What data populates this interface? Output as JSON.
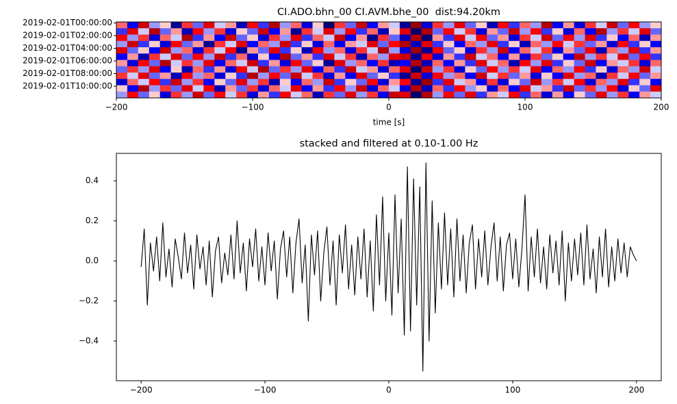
{
  "chart_data": [
    {
      "type": "heatmap",
      "title": "CI.ADO.bhn_00 CI.AVM.bhe_00  dist:94.20km",
      "xlabel": "time [s]",
      "xlim": [
        -200,
        200
      ],
      "xticks": [
        {
          "value": -200,
          "label": "−200"
        },
        {
          "value": -100,
          "label": "−100"
        },
        0,
        100,
        200
      ],
      "rows": [
        "2019-02-01T00:00:00",
        null,
        "2019-02-01T02:00:00",
        null,
        "2019-02-01T04:00:00",
        null,
        "2019-02-01T06:00:00",
        null,
        "2019-02-01T08:00:00",
        null,
        "2019-02-01T10:00:00",
        null
      ],
      "cmap": "seismic",
      "clim": [
        -10,
        10
      ],
      "z": [
        [
          3,
          -5,
          7,
          -2,
          1,
          -8,
          4,
          -3,
          6,
          -1,
          2,
          -7,
          5,
          -4,
          8,
          -2,
          3,
          -6,
          1,
          -9,
          4,
          -3,
          7,
          -5,
          2,
          -1,
          -8,
          9,
          -6,
          4,
          -2,
          6,
          -3,
          1,
          -7,
          5,
          -4,
          3,
          -2,
          8,
          -5,
          2,
          -6,
          4,
          -1,
          7,
          -3,
          5,
          -2,
          1
        ],
        [
          -4,
          6,
          -1,
          8,
          -3,
          2,
          -7,
          5,
          -2,
          4,
          -6,
          1,
          -3,
          7,
          -5,
          2,
          -8,
          4,
          -1,
          6,
          -2,
          5,
          -4,
          3,
          -7,
          1,
          6,
          -9,
          8,
          -3,
          5,
          -1,
          4,
          -6,
          2,
          -3,
          7,
          -2,
          5,
          -4,
          1,
          -6,
          3,
          -5,
          8,
          -2,
          4,
          -1,
          6,
          -3
        ],
        [
          5,
          -2,
          4,
          -6,
          3,
          -1,
          8,
          -4,
          2,
          -5,
          7,
          -3,
          1,
          -6,
          4,
          -2,
          6,
          -4,
          3,
          -1,
          7,
          -5,
          2,
          -8,
          4,
          -3,
          -7,
          8,
          -9,
          2,
          -4,
          6,
          -1,
          5,
          -3,
          2,
          -6,
          4,
          -1,
          7,
          -3,
          5,
          -2,
          6,
          -4,
          1,
          -5,
          3,
          -7,
          2
        ],
        [
          -2,
          7,
          -4,
          1,
          -6,
          5,
          -3,
          2,
          -8,
          4,
          -1,
          6,
          -5,
          3,
          -2,
          7,
          -4,
          1,
          -6,
          3,
          -5,
          2,
          -1,
          6,
          -3,
          5,
          8,
          -7,
          6,
          -4,
          1,
          -5,
          3,
          -2,
          6,
          -4,
          1,
          -7,
          3,
          -2,
          5,
          -1,
          4,
          -3,
          2,
          -6,
          5,
          -4,
          1,
          -5
        ],
        [
          6,
          -3,
          1,
          -5,
          7,
          -2,
          3,
          -6,
          4,
          -1,
          5,
          -8,
          2,
          -3,
          6,
          -4,
          1,
          -7,
          5,
          -2,
          3,
          -6,
          4,
          -1,
          8,
          -2,
          -6,
          9,
          -8,
          5,
          -3,
          1,
          -6,
          4,
          -2,
          7,
          -5,
          3,
          -1,
          4,
          -6,
          2,
          -3,
          5,
          -7,
          3,
          -2,
          6,
          -4,
          2
        ],
        [
          -5,
          2,
          -7,
          4,
          -1,
          6,
          -3,
          5,
          -2,
          7,
          -4,
          3,
          -6,
          1,
          -5,
          8,
          -3,
          2,
          -4,
          6,
          -1,
          4,
          -7,
          3,
          -2,
          6,
          7,
          -8,
          5,
          -6,
          2,
          -4,
          7,
          -1,
          3,
          -5,
          2,
          -6,
          4,
          -3,
          1,
          -5,
          7,
          -2,
          4,
          -1,
          6,
          -3,
          5,
          -4
        ],
        [
          2,
          -6,
          5,
          -3,
          8,
          -1,
          4,
          -2,
          6,
          -5,
          3,
          -1,
          7,
          -4,
          2,
          -6,
          5,
          -3,
          1,
          -8,
          6,
          -2,
          3,
          -5,
          4,
          -7,
          -5,
          8,
          -7,
          3,
          -5,
          2,
          -4,
          6,
          -1,
          3,
          -7,
          5,
          -2,
          6,
          -4,
          1,
          -3,
          7,
          -5,
          2,
          -1,
          4,
          -6,
          3
        ],
        [
          -3,
          4,
          -2,
          6,
          -5,
          1,
          -7,
          3,
          -4,
          2,
          -6,
          5,
          -1,
          8,
          -3,
          4,
          -2,
          6,
          -5,
          3,
          -4,
          7,
          -1,
          2,
          -6,
          3,
          6,
          -9,
          7,
          -2,
          4,
          -6,
          1,
          -3,
          5,
          -2,
          4,
          -1,
          6,
          -5,
          3,
          -2,
          5,
          -4,
          1,
          -6,
          3,
          -2,
          7,
          -1
        ],
        [
          4,
          -1,
          6,
          -3,
          2,
          -7,
          5,
          -2,
          3,
          -6,
          1,
          -4,
          8,
          -2,
          5,
          -3,
          7,
          -1,
          4,
          -6,
          2,
          -5,
          6,
          -3,
          1,
          -4,
          -8,
          7,
          -6,
          5,
          -2,
          3,
          -5,
          7,
          -1,
          4,
          -3,
          2,
          -6,
          1,
          -5,
          6,
          -2,
          3,
          -7,
          4,
          -1,
          5,
          -3,
          2
        ],
        [
          -6,
          3,
          -1,
          5,
          -4,
          7,
          -2,
          4,
          -5,
          1,
          -3,
          6,
          -2,
          4,
          -7,
          1,
          -5,
          3,
          -2,
          7,
          -4,
          1,
          -3,
          5,
          -6,
          2,
          5,
          -8,
          9,
          -4,
          6,
          -1,
          2,
          -5,
          4,
          -6,
          1,
          -3,
          7,
          -2,
          4,
          -1,
          5,
          -6,
          3,
          -2,
          6,
          -4,
          1,
          -5
        ],
        [
          1,
          -5,
          8,
          -2,
          4,
          -3,
          6,
          -1,
          5,
          -7,
          2,
          -3,
          4,
          -6,
          3,
          -1,
          6,
          -5,
          2,
          -4,
          5,
          -2,
          7,
          -6,
          3,
          -1,
          -6,
          8,
          -7,
          3,
          -4,
          5,
          -2,
          1,
          -6,
          3,
          -5,
          6,
          -1,
          2,
          -4,
          7,
          -3,
          4,
          -2,
          5,
          -6,
          1,
          -3,
          6
        ],
        [
          -2,
          5,
          -3,
          1,
          -6,
          4,
          -2,
          7,
          -3,
          5,
          -1,
          4,
          -6,
          2,
          -4,
          5,
          -1,
          3,
          -7,
          4,
          -3,
          6,
          -2,
          4,
          -5,
          7,
          6,
          -9,
          8,
          -2,
          5,
          -3,
          6,
          -4,
          2,
          -1,
          5,
          -4,
          3,
          -6,
          2,
          -5,
          1,
          -3,
          6,
          -2,
          4,
          -5,
          2,
          -1
        ]
      ]
    },
    {
      "type": "line",
      "title": "stacked and filtered at 0.10-1.00 Hz",
      "color": "#000000",
      "xlim": [
        -220,
        220
      ],
      "xticks": [
        {
          "value": -200,
          "label": "−200"
        },
        {
          "value": -100,
          "label": "−100"
        },
        0,
        100,
        200
      ],
      "ylim": [
        -0.598,
        0.537
      ],
      "yticks": [
        {
          "value": -0.4,
          "label": "−0.4"
        },
        {
          "value": -0.2,
          "label": "−0.2"
        },
        {
          "value": 0,
          "label": "0.0"
        },
        0.2,
        0.4
      ],
      "x": [
        -200,
        -197.5,
        -195,
        -192.5,
        -190,
        -187.5,
        -185,
        -182.5,
        -180,
        -177.5,
        -175,
        -172.5,
        -170,
        -167.5,
        -165,
        -162.5,
        -160,
        -157.5,
        -155,
        -152.5,
        -150,
        -147.5,
        -145,
        -142.5,
        -140,
        -137.5,
        -135,
        -132.5,
        -130,
        -127.5,
        -125,
        -122.5,
        -120,
        -117.5,
        -115,
        -112.5,
        -110,
        -107.5,
        -105,
        -102.5,
        -100,
        -97.5,
        -95,
        -92.5,
        -90,
        -87.5,
        -85,
        -82.5,
        -80,
        -77.5,
        -75,
        -72.5,
        -70,
        -67.5,
        -65,
        -62.5,
        -60,
        -57.5,
        -55,
        -52.5,
        -50,
        -47.5,
        -45,
        -42.5,
        -40,
        -37.5,
        -35,
        -32.5,
        -30,
        -27.5,
        -25,
        -22.5,
        -20,
        -17.5,
        -15,
        -12.5,
        -10,
        -7.5,
        -5,
        -2.5,
        0,
        2.5,
        5,
        7.5,
        10,
        12.5,
        15,
        17.5,
        20,
        22.5,
        25,
        27.5,
        30,
        32.5,
        35,
        37.5,
        40,
        42.5,
        45,
        47.5,
        50,
        52.5,
        55,
        57.5,
        60,
        62.5,
        65,
        67.5,
        70,
        72.5,
        75,
        77.5,
        80,
        82.5,
        85,
        87.5,
        90,
        92.5,
        95,
        97.5,
        100,
        102.5,
        105,
        107.5,
        110,
        112.5,
        115,
        117.5,
        120,
        122.5,
        125,
        127.5,
        130,
        132.5,
        135,
        137.5,
        140,
        142.5,
        145,
        147.5,
        150,
        152.5,
        155,
        157.5,
        160,
        162.5,
        165,
        167.5,
        170,
        172.5,
        175,
        177.5,
        180,
        182.5,
        185,
        187.5,
        190,
        192.5,
        195,
        197.5,
        200
      ],
      "values": [
        -0.03,
        0.16,
        -0.22,
        0.09,
        -0.05,
        0.12,
        -0.1,
        0.19,
        -0.08,
        0.06,
        -0.13,
        0.11,
        0.02,
        -0.09,
        0.14,
        -0.06,
        0.08,
        -0.14,
        0.13,
        -0.04,
        0.07,
        -0.12,
        0.1,
        -0.18,
        0.05,
        0.12,
        -0.11,
        0.04,
        -0.07,
        0.13,
        -0.09,
        0.2,
        -0.06,
        0.09,
        -0.15,
        0.11,
        -0.03,
        0.16,
        -0.1,
        0.07,
        -0.12,
        0.14,
        -0.05,
        0.1,
        -0.19,
        0.06,
        0.15,
        -0.08,
        0.12,
        -0.16,
        0.09,
        0.21,
        -0.11,
        0.08,
        -0.3,
        0.13,
        -0.07,
        0.15,
        -0.2,
        0.04,
        0.17,
        -0.12,
        0.1,
        -0.22,
        0.13,
        -0.06,
        0.18,
        -0.14,
        0.08,
        -0.17,
        0.12,
        -0.09,
        0.16,
        -0.18,
        0.1,
        -0.25,
        0.23,
        -0.12,
        0.32,
        -0.2,
        0.14,
        -0.27,
        0.33,
        -0.16,
        0.21,
        -0.37,
        0.47,
        -0.35,
        0.41,
        -0.22,
        0.37,
        -0.55,
        0.49,
        -0.4,
        0.3,
        -0.26,
        0.19,
        -0.14,
        0.24,
        -0.12,
        0.16,
        -0.18,
        0.21,
        -0.1,
        0.13,
        -0.16,
        0.09,
        0.18,
        -0.14,
        0.11,
        -0.08,
        0.15,
        -0.12,
        0.07,
        0.19,
        -0.1,
        0.12,
        -0.15,
        0.08,
        0.14,
        -0.09,
        0.11,
        -0.13,
        0.06,
        0.33,
        -0.15,
        0.12,
        -0.08,
        0.16,
        -0.11,
        0.07,
        -0.14,
        0.13,
        -0.06,
        0.1,
        -0.12,
        0.15,
        -0.2,
        0.09,
        -0.1,
        0.11,
        -0.07,
        0.14,
        -0.12,
        0.18,
        -0.09,
        0.06,
        -0.16,
        0.12,
        -0.08,
        0.16,
        -0.13,
        0.07,
        -0.1,
        0.11,
        -0.06,
        0.09,
        -0.08,
        0.07,
        0.03,
        0.0
      ]
    }
  ]
}
